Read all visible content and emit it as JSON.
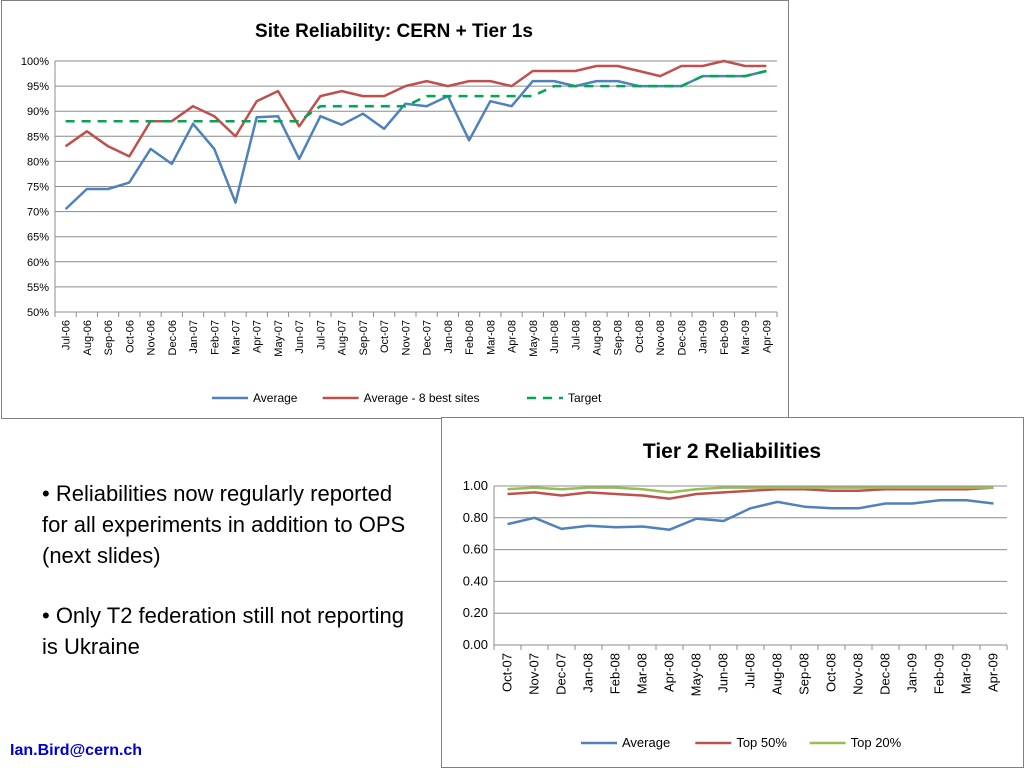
{
  "slide": {
    "bullets": [
      "• Reliabilities now regularly reported for all experiments in addition to OPS (next slides)",
      "• Only T2 federation still not reporting is Ukraine"
    ],
    "footer": "Ian.Bird@cern.ch"
  },
  "chart_data": [
    {
      "type": "line",
      "title": "Site Reliability: CERN + Tier 1s",
      "xlabel": "",
      "ylabel": "",
      "ylim": [
        0.5,
        1.0
      ],
      "y_tick_labels": [
        "50%",
        "55%",
        "60%",
        "65%",
        "70%",
        "75%",
        "80%",
        "85%",
        "90%",
        "95%",
        "100%"
      ],
      "grid": true,
      "legend_position": "bottom",
      "categories": [
        "Jul-06",
        "Aug-06",
        "Sep-06",
        "Oct-06",
        "Nov-06",
        "Dec-06",
        "Jan-07",
        "Feb-07",
        "Mar-07",
        "Apr-07",
        "May-07",
        "Jun-07",
        "Jul-07",
        "Aug-07",
        "Sep-07",
        "Oct-07",
        "Nov-07",
        "Dec-07",
        "Jan-08",
        "Feb-08",
        "Mar-08",
        "Apr-08",
        "May-08",
        "Jun-08",
        "Jul-08",
        "Aug-08",
        "Sep-08",
        "Oct-08",
        "Nov-08",
        "Dec-08",
        "Jan-09",
        "Feb-09",
        "Mar-09",
        "Apr-09"
      ],
      "series": [
        {
          "name": "Average",
          "color": "#4f81bd",
          "dash": false,
          "values": [
            0.705,
            0.745,
            0.745,
            0.758,
            0.825,
            0.795,
            0.875,
            0.825,
            0.718,
            0.888,
            0.89,
            0.805,
            0.89,
            0.873,
            0.895,
            0.865,
            0.915,
            0.91,
            0.93,
            0.842,
            0.92,
            0.91,
            0.96,
            0.96,
            0.95,
            0.96,
            0.96,
            0.95,
            0.95,
            0.95,
            0.97,
            0.97,
            0.97,
            0.98
          ]
        },
        {
          "name": "Average - 8 best sites",
          "color": "#c0504d",
          "dash": false,
          "values": [
            0.83,
            0.86,
            0.83,
            0.81,
            0.88,
            0.88,
            0.91,
            0.89,
            0.85,
            0.92,
            0.94,
            0.87,
            0.93,
            0.94,
            0.93,
            0.93,
            0.95,
            0.96,
            0.95,
            0.96,
            0.96,
            0.95,
            0.98,
            0.98,
            0.98,
            0.99,
            0.99,
            0.98,
            0.97,
            0.99,
            0.99,
            1.0,
            0.99,
            0.99
          ]
        },
        {
          "name": "Target",
          "color": "#00a651",
          "dash": true,
          "values": [
            0.88,
            0.88,
            0.88,
            0.88,
            0.88,
            0.88,
            0.88,
            0.88,
            0.88,
            0.88,
            0.88,
            0.88,
            0.91,
            0.91,
            0.91,
            0.91,
            0.91,
            0.93,
            0.93,
            0.93,
            0.93,
            0.93,
            0.93,
            0.95,
            0.95,
            0.95,
            0.95,
            0.95,
            0.95,
            0.95,
            0.97,
            0.97,
            0.97,
            0.98
          ]
        }
      ]
    },
    {
      "type": "line",
      "title": "Tier 2 Reliabilities",
      "xlabel": "",
      "ylabel": "",
      "ylim": [
        0.0,
        1.0
      ],
      "y_tick_labels": [
        "0.00",
        "0.20",
        "0.40",
        "0.60",
        "0.80",
        "1.00"
      ],
      "grid": true,
      "legend_position": "bottom",
      "categories": [
        "Oct-07",
        "Nov-07",
        "Dec-07",
        "Jan-08",
        "Feb-08",
        "Mar-08",
        "Apr-08",
        "May-08",
        "Jun-08",
        "Jul-08",
        "Aug-08",
        "Sep-08",
        "Oct-08",
        "Nov-08",
        "Dec-08",
        "Jan-09",
        "Feb-09",
        "Mar-09",
        "Apr-09"
      ],
      "series": [
        {
          "name": "Average",
          "color": "#4f81bd",
          "dash": false,
          "values": [
            0.76,
            0.8,
            0.73,
            0.75,
            0.74,
            0.745,
            0.725,
            0.795,
            0.78,
            0.86,
            0.9,
            0.87,
            0.86,
            0.86,
            0.89,
            0.89,
            0.91,
            0.91,
            0.89
          ]
        },
        {
          "name": "Top 50%",
          "color": "#c0504d",
          "dash": false,
          "values": [
            0.95,
            0.96,
            0.94,
            0.96,
            0.95,
            0.94,
            0.92,
            0.95,
            0.96,
            0.97,
            0.98,
            0.98,
            0.97,
            0.97,
            0.98,
            0.98,
            0.98,
            0.98,
            0.99
          ]
        },
        {
          "name": "Top 20%",
          "color": "#9bbb59",
          "dash": false,
          "values": [
            0.98,
            0.99,
            0.98,
            0.99,
            0.99,
            0.98,
            0.96,
            0.98,
            0.99,
            0.99,
            0.99,
            0.99,
            0.99,
            0.99,
            0.99,
            0.99,
            0.99,
            0.99,
            0.99
          ]
        }
      ]
    }
  ]
}
